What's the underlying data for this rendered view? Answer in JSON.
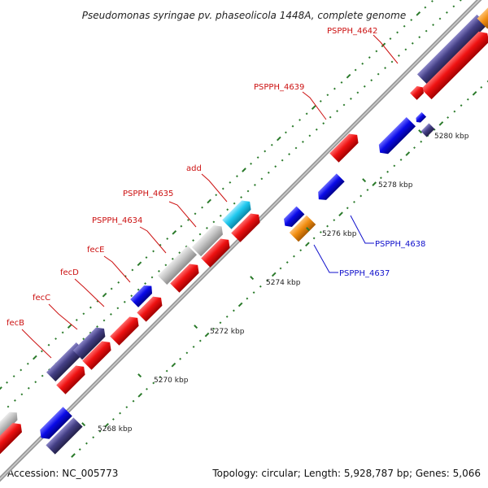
{
  "title": "Pseudomonas syringae pv. phaseolicola 1448A, complete genome",
  "footer": {
    "accession": "Accession: NC_005773",
    "summary": "Topology: circular; Length: 5,928,787 bp; Genes: 5,066"
  },
  "kbp_ticks": [
    {
      "label": "5268 kbp",
      "pos": 5268
    },
    {
      "label": "5270 kbp",
      "pos": 5270
    },
    {
      "label": "5272 kbp",
      "pos": 5272
    },
    {
      "label": "5274 kbp",
      "pos": 5274
    },
    {
      "label": "5276 kbp",
      "pos": 5276
    },
    {
      "label": "5278 kbp",
      "pos": 5278
    },
    {
      "label": "5280 kbp",
      "pos": 5280
    }
  ],
  "gene_labels": [
    {
      "name": "fecB",
      "color": "red"
    },
    {
      "name": "fecC",
      "color": "red"
    },
    {
      "name": "fecD",
      "color": "red"
    },
    {
      "name": "fecE",
      "color": "red"
    },
    {
      "name": "PSPPH_4634",
      "color": "red"
    },
    {
      "name": "PSPPH_4635",
      "color": "red"
    },
    {
      "name": "add",
      "color": "red"
    },
    {
      "name": "PSPPH_4639",
      "color": "red"
    },
    {
      "name": "PSPPH_4642",
      "color": "red"
    },
    {
      "name": "PSPPH_4638",
      "color": "blue"
    },
    {
      "name": "PSPPH_4637",
      "color": "blue"
    }
  ],
  "colors": {
    "cds_forward": "#ee1111",
    "cds_reverse": "#0a0ae8",
    "gene_purple": "#443f85",
    "gene_grey": "#c4c4c4",
    "gene_cyan": "#1ec8ee",
    "gene_orange": "#f08c10",
    "backbone": "#8a8a8a",
    "tick_green": "#2a7a2a"
  }
}
